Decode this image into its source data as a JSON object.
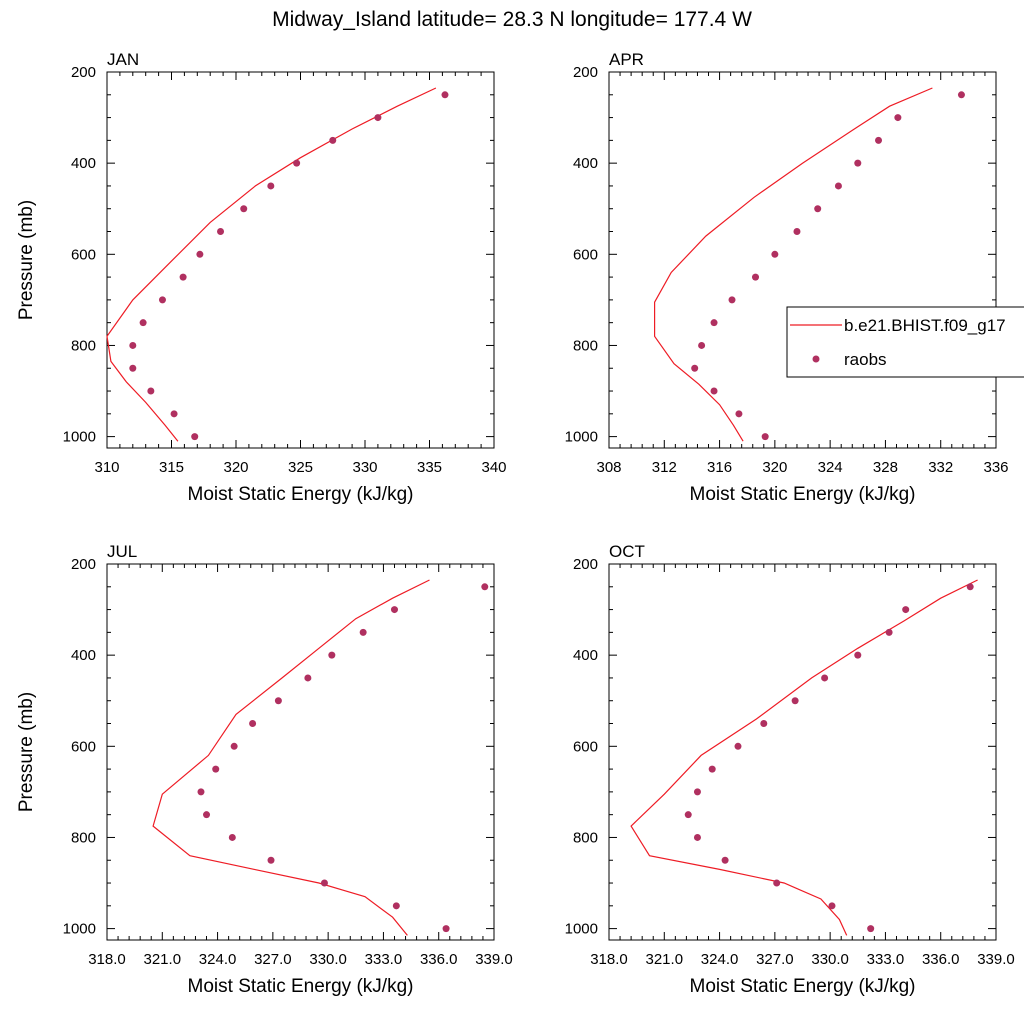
{
  "figure": {
    "title": "Midway_Island  latitude= 28.3 N longitude= 177.4 W"
  },
  "legend": {
    "model_label": "b.e21.BHIST.f09_g17",
    "obs_label": "raobs"
  },
  "colors": {
    "model_line": "#ee1c25",
    "obs_marker": "#b03060",
    "axis": "#000000"
  },
  "chart_data": [
    {
      "type": "line",
      "title": "JAN",
      "xlabel": "Moist Static Energy (kJ/kg)",
      "ylabel": "Pressure (mb)",
      "xlim": [
        310,
        340
      ],
      "xticks": [
        310,
        315,
        320,
        325,
        330,
        335,
        340
      ],
      "xtick_labels": [
        "310",
        "315",
        "320",
        "325",
        "330",
        "335",
        "340"
      ],
      "ylim": [
        200,
        1025
      ],
      "yticks": [
        200,
        400,
        600,
        800,
        1000
      ],
      "ytick_labels": [
        "200",
        "400",
        "600",
        "800",
        "1000"
      ],
      "y_inverted": true,
      "series": [
        {
          "name": "b.e21.BHIST.f09_g17",
          "style": "line",
          "x": [
            335.5,
            332.5,
            329.0,
            325.0,
            321.5,
            318.0,
            315.0,
            312.0,
            310.0,
            310.3,
            311.5,
            313.0,
            314.5,
            315.5
          ],
          "y": [
            235,
            275,
            325,
            388,
            450,
            530,
            615,
            700,
            780,
            835,
            880,
            925,
            975,
            1010
          ]
        },
        {
          "name": "raobs",
          "style": "markers",
          "x": [
            336.2,
            331.0,
            327.5,
            324.7,
            322.7,
            320.6,
            318.8,
            317.2,
            315.9,
            314.3,
            312.8,
            312.0,
            312.0,
            313.4,
            315.2,
            316.8
          ],
          "y": [
            250,
            300,
            350,
            400,
            450,
            500,
            550,
            600,
            650,
            700,
            750,
            800,
            850,
            900,
            950,
            1000
          ]
        }
      ],
      "legend": "none"
    },
    {
      "type": "line",
      "title": "APR",
      "xlabel": "Moist Static Energy (kJ/kg)",
      "ylabel": "",
      "xlim": [
        308,
        336
      ],
      "xticks": [
        308,
        312,
        316,
        320,
        324,
        328,
        332,
        336
      ],
      "xtick_labels": [
        "308",
        "312",
        "316",
        "320",
        "324",
        "328",
        "332",
        "336"
      ],
      "ylim": [
        200,
        1025
      ],
      "yticks": [
        200,
        400,
        600,
        800,
        1000
      ],
      "ytick_labels": [
        "200",
        "400",
        "600",
        "800",
        "1000"
      ],
      "y_inverted": true,
      "series": [
        {
          "name": "b.e21.BHIST.f09_g17",
          "style": "line",
          "x": [
            331.4,
            328.3,
            325.5,
            322.0,
            318.5,
            315.0,
            312.5,
            311.3,
            311.3,
            312.7,
            314.5,
            316.0,
            317.0,
            317.7
          ],
          "y": [
            235,
            275,
            330,
            400,
            475,
            560,
            640,
            705,
            780,
            840,
            885,
            930,
            975,
            1010
          ]
        },
        {
          "name": "raobs",
          "style": "markers",
          "x": [
            333.5,
            328.9,
            327.5,
            326.0,
            324.6,
            323.1,
            321.6,
            320.0,
            318.6,
            316.9,
            315.6,
            314.7,
            314.2,
            315.6,
            317.4,
            319.3
          ],
          "y": [
            250,
            300,
            350,
            400,
            450,
            500,
            550,
            600,
            650,
            700,
            750,
            800,
            850,
            900,
            950,
            1000
          ]
        }
      ],
      "legend": "right"
    },
    {
      "type": "line",
      "title": "JUL",
      "xlabel": "Moist Static Energy (kJ/kg)",
      "ylabel": "Pressure (mb)",
      "xlim": [
        318,
        339
      ],
      "xticks": [
        318,
        321,
        324,
        327,
        330,
        333,
        336,
        339
      ],
      "xtick_labels": [
        "318.0",
        "321.0",
        "324.0",
        "327.0",
        "330.0",
        "333.0",
        "336.0",
        "339.0"
      ],
      "ylim": [
        200,
        1025
      ],
      "yticks": [
        200,
        400,
        600,
        800,
        1000
      ],
      "ytick_labels": [
        "200",
        "400",
        "600",
        "800",
        "1000"
      ],
      "y_inverted": true,
      "series": [
        {
          "name": "b.e21.BHIST.f09_g17",
          "style": "line",
          "x": [
            335.5,
            333.5,
            331.5,
            329.5,
            327.5,
            325.0,
            323.5,
            321.0,
            320.5,
            322.5,
            326.0,
            329.5,
            332.0,
            333.5,
            334.3
          ],
          "y": [
            235,
            275,
            320,
            385,
            450,
            530,
            620,
            705,
            775,
            840,
            870,
            900,
            930,
            975,
            1015
          ]
        },
        {
          "name": "raobs",
          "style": "markers",
          "x": [
            338.5,
            333.6,
            331.9,
            330.2,
            328.9,
            327.3,
            325.9,
            324.9,
            323.9,
            323.1,
            323.4,
            324.8,
            326.9,
            329.8,
            333.7,
            336.4
          ],
          "y": [
            250,
            300,
            350,
            400,
            450,
            500,
            550,
            600,
            650,
            700,
            750,
            800,
            850,
            900,
            950,
            1000
          ]
        }
      ],
      "legend": "none"
    },
    {
      "type": "line",
      "title": "OCT",
      "xlabel": "Moist Static Energy (kJ/kg)",
      "ylabel": "",
      "xlim": [
        318,
        339
      ],
      "xticks": [
        318,
        321,
        324,
        327,
        330,
        333,
        336,
        339
      ],
      "xtick_labels": [
        "318.0",
        "321.0",
        "324.0",
        "327.0",
        "330.0",
        "333.0",
        "336.0",
        "339.0"
      ],
      "ylim": [
        200,
        1025
      ],
      "yticks": [
        200,
        400,
        600,
        800,
        1000
      ],
      "ytick_labels": [
        "200",
        "400",
        "600",
        "800",
        "1000"
      ],
      "y_inverted": true,
      "series": [
        {
          "name": "b.e21.BHIST.f09_g17",
          "style": "line",
          "x": [
            338.0,
            336.0,
            334.0,
            331.5,
            329.0,
            326.0,
            323.0,
            321.0,
            319.2,
            320.2,
            324.0,
            327.5,
            329.5,
            330.5,
            330.9
          ],
          "y": [
            235,
            275,
            325,
            385,
            450,
            540,
            620,
            705,
            775,
            840,
            870,
            900,
            935,
            980,
            1015
          ]
        },
        {
          "name": "raobs",
          "style": "markers",
          "x": [
            337.6,
            334.1,
            333.2,
            331.5,
            329.7,
            328.1,
            326.4,
            325.0,
            323.6,
            322.8,
            322.3,
            322.8,
            324.3,
            327.1,
            330.1,
            332.2
          ],
          "y": [
            250,
            300,
            350,
            400,
            450,
            500,
            550,
            600,
            650,
            700,
            750,
            800,
            850,
            900,
            950,
            1000
          ]
        }
      ],
      "legend": "none"
    }
  ]
}
